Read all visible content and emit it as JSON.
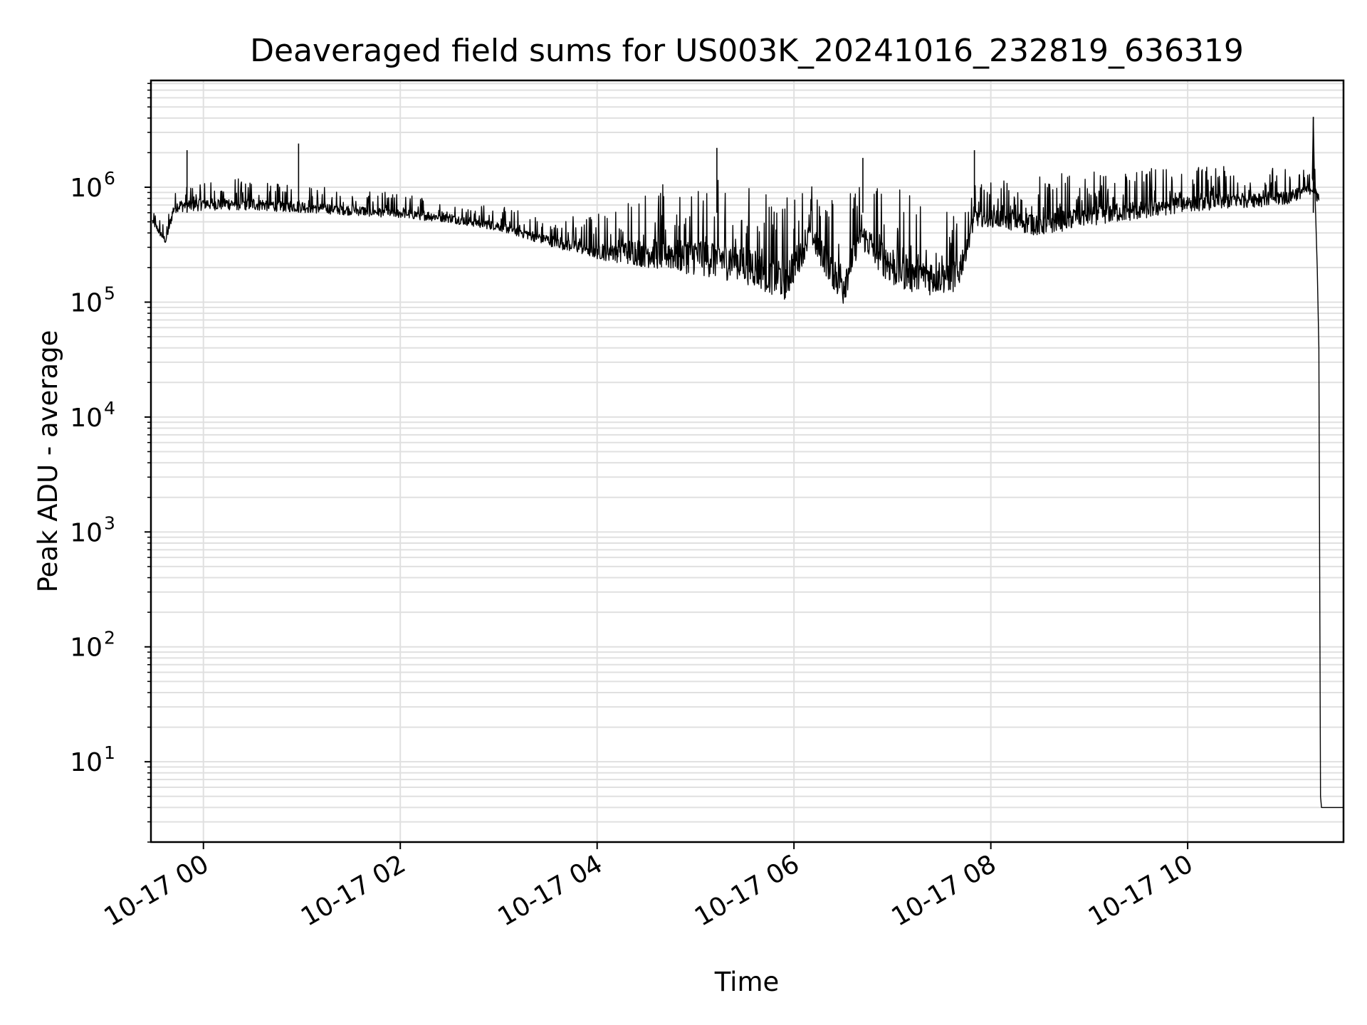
{
  "chart_data": {
    "type": "line",
    "title": "Deaveraged field sums for US003K_20241016_232819_636319",
    "xlabel": "Time",
    "ylabel": "Peak ADU - average",
    "yscale": "log",
    "ylim": [
      2,
      8500000
    ],
    "xlim": [
      "2024-10-16 23:28",
      "2024-10-17 11:35"
    ],
    "grid": true,
    "line_color": "#000000",
    "grid_color": "#e0e0e0",
    "x_ticks": [
      {
        "t": "2024-10-17 00:00",
        "label": "10-17 00"
      },
      {
        "t": "2024-10-17 02:00",
        "label": "10-17 02"
      },
      {
        "t": "2024-10-17 04:00",
        "label": "10-17 04"
      },
      {
        "t": "2024-10-17 06:00",
        "label": "10-17 06"
      },
      {
        "t": "2024-10-17 08:00",
        "label": "10-17 08"
      },
      {
        "t": "2024-10-17 10:00",
        "label": "10-17 10"
      }
    ],
    "y_ticks": [
      {
        "value": 10,
        "base": "10",
        "exp": "1"
      },
      {
        "value": 100,
        "base": "10",
        "exp": "2"
      },
      {
        "value": 1000,
        "base": "10",
        "exp": "3"
      },
      {
        "value": 10000,
        "base": "10",
        "exp": "4"
      },
      {
        "value": 100000,
        "base": "10",
        "exp": "5"
      },
      {
        "value": 1000000,
        "base": "10",
        "exp": "6"
      }
    ],
    "series": [
      {
        "band": {
          "x": [
            "2024-10-16 23:29",
            "2024-10-16 23:33",
            "2024-10-16 23:37",
            "2024-10-16 23:42",
            "2024-10-16 23:44",
            "2024-10-16 23:50",
            "2024-10-16 23:53",
            "2024-10-17 00:00",
            "2024-10-17 00:30",
            "2024-10-17 01:00",
            "2024-10-17 01:30",
            "2024-10-17 02:00",
            "2024-10-17 02:30",
            "2024-10-17 03:00",
            "2024-10-17 03:30",
            "2024-10-17 04:00",
            "2024-10-17 04:30",
            "2024-10-17 05:00",
            "2024-10-17 05:30",
            "2024-10-17 05:55",
            "2024-10-17 06:10",
            "2024-10-17 06:30",
            "2024-10-17 06:40",
            "2024-10-17 07:00",
            "2024-10-17 07:20",
            "2024-10-17 07:40",
            "2024-10-17 07:50",
            "2024-10-17 08:00",
            "2024-10-17 08:30",
            "2024-10-17 09:00",
            "2024-10-17 09:30",
            "2024-10-17 10:00",
            "2024-10-17 10:30",
            "2024-10-17 11:00",
            "2024-10-17 11:16",
            "2024-10-17 11:20"
          ],
          "low": [
            450000,
            360000,
            300000,
            520000,
            550000,
            540000,
            540000,
            560000,
            560000,
            540000,
            520000,
            490000,
            450000,
            380000,
            280000,
            200000,
            150000,
            120000,
            100000,
            70000,
            230000,
            60000,
            240000,
            90000,
            80000,
            90000,
            380000,
            380000,
            300000,
            380000,
            430000,
            520000,
            560000,
            600000,
            800000,
            600000
          ],
          "high": [
            650000,
            550000,
            450000,
            1100000,
            1100000,
            1200000,
            1200000,
            1250000,
            1200000,
            1100000,
            950000,
            900000,
            800000,
            700000,
            550000,
            600000,
            1000000,
            1300000,
            1200000,
            900000,
            1200000,
            900000,
            1100000,
            1200000,
            800000,
            700000,
            1200000,
            1200000,
            1300000,
            1400000,
            1500000,
            1550000,
            1600000,
            1600000,
            1550000,
            1450000
          ]
        },
        "tail": {
          "x": [
            "2024-10-17 11:16",
            "2024-10-17 11:16.6",
            "2024-10-17 11:17.2",
            "2024-10-17 11:18",
            "2024-10-17 11:19",
            "2024-10-17 11:20",
            "2024-10-17 11:21",
            "2024-10-17 11:21.6",
            "2024-10-17 11:22",
            "2024-10-17 11:23",
            "2024-10-17 11:35"
          ],
          "values": [
            1200000,
            4000000,
            1300000,
            600000,
            200000,
            40000,
            5,
            4,
            4,
            4,
            4
          ]
        },
        "spikes": [
          {
            "t": "2024-10-16 23:50",
            "value": 2100000
          },
          {
            "t": "2024-10-17 00:58",
            "value": 2400000
          },
          {
            "t": "2024-10-17 05:13",
            "value": 2200000
          },
          {
            "t": "2024-10-17 06:42",
            "value": 1800000
          },
          {
            "t": "2024-10-17 07:50",
            "value": 2100000
          },
          {
            "t": "2024-10-17 11:16.6",
            "value": 4100000
          }
        ]
      }
    ]
  }
}
